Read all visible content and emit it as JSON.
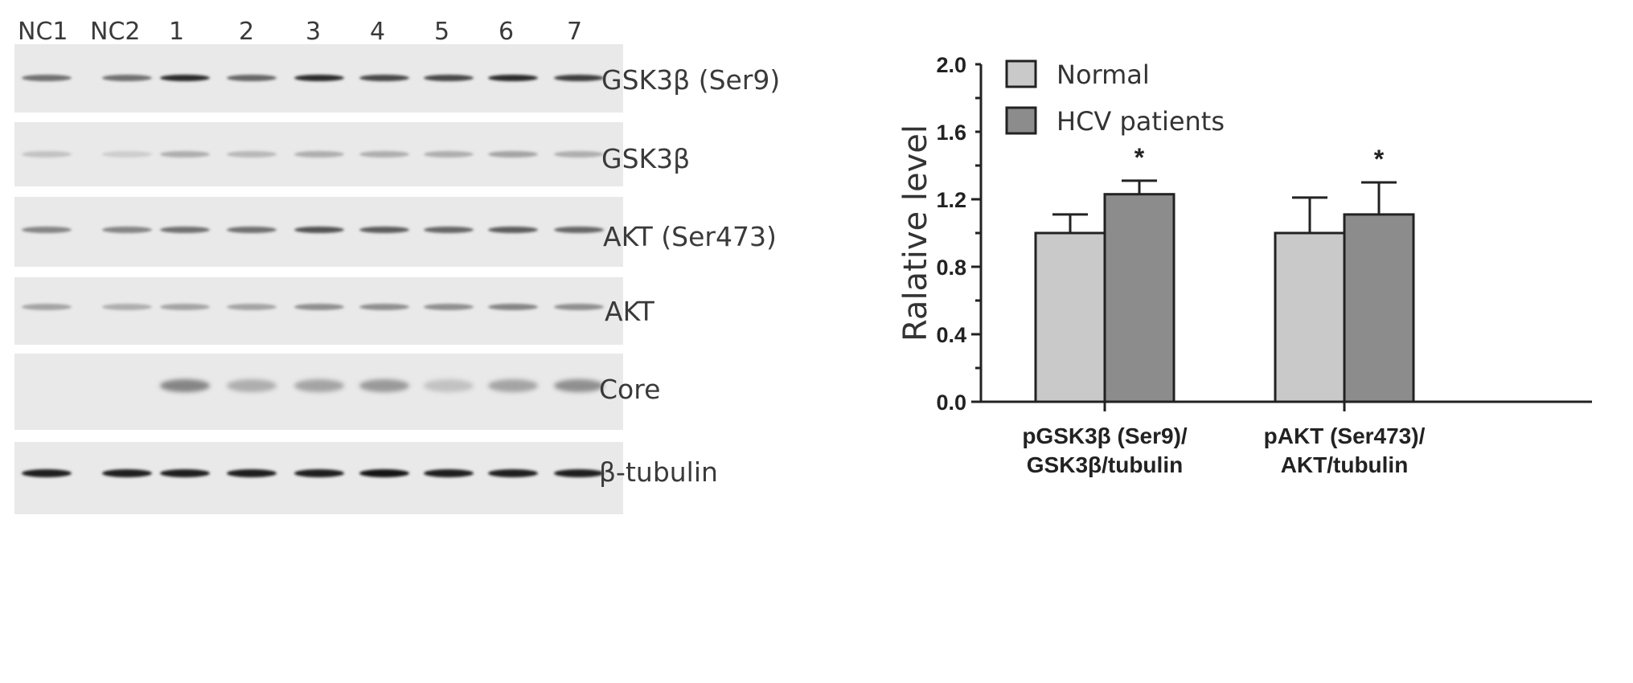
{
  "blot": {
    "lanes": [
      "NC1",
      "NC2",
      "1",
      "2",
      "3",
      "4",
      "5",
      "6",
      "7"
    ],
    "proteins": [
      "GSK3β (Ser9)",
      "GSK3β",
      "AKT (Ser473)",
      "AKT",
      "Core",
      "β-tubulin"
    ],
    "band_intensity": [
      [
        0.55,
        0.55,
        0.9,
        0.6,
        0.9,
        0.75,
        0.75,
        0.9,
        0.8
      ],
      [
        0.15,
        0.1,
        0.25,
        0.2,
        0.25,
        0.25,
        0.25,
        0.3,
        0.25
      ],
      [
        0.45,
        0.45,
        0.55,
        0.55,
        0.7,
        0.65,
        0.6,
        0.65,
        0.6
      ],
      [
        0.3,
        0.25,
        0.3,
        0.3,
        0.4,
        0.4,
        0.4,
        0.45,
        0.4
      ],
      [
        0.0,
        0.0,
        0.45,
        0.25,
        0.3,
        0.35,
        0.15,
        0.3,
        0.4
      ],
      [
        0.95,
        0.95,
        0.95,
        0.95,
        0.95,
        1.0,
        0.95,
        0.95,
        0.95
      ]
    ]
  },
  "chart_data": {
    "type": "bar",
    "categories": [
      [
        "pGSK3β (Ser9)/",
        "GSK3β/tubulin"
      ],
      [
        "pAKT (Ser473)/",
        "AKT/tubulin"
      ]
    ],
    "series": [
      {
        "name": "Normal",
        "values": [
          1.0,
          1.0
        ],
        "errors": [
          0.11,
          0.21
        ],
        "color": "#c9c9c9"
      },
      {
        "name": "HCV patients",
        "values": [
          1.23,
          1.11
        ],
        "errors": [
          0.08,
          0.19
        ],
        "color": "#8c8c8c"
      }
    ],
    "significance": [
      "*",
      "*"
    ],
    "ylabel": "Ralative level",
    "ylim": [
      0.0,
      2.0
    ],
    "yticks": [
      "0.0",
      "0.4",
      "0.8",
      "1.2",
      "1.6",
      "2.0"
    ],
    "legend_placement": "top-left",
    "grid": false
  }
}
